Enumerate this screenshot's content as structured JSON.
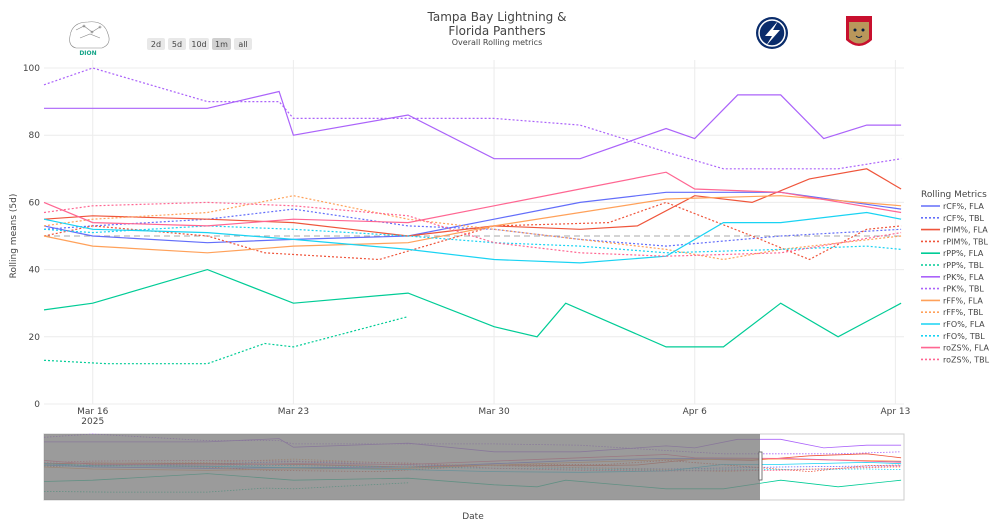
{
  "chart_data": {
    "type": "line",
    "title_lines": [
      "Tampa Bay Lightning &",
      "Florida Panthers"
    ],
    "subtitle": "Overall Rolling metrics",
    "xlabel": "Date",
    "ylabel": "Rolling means (5d)",
    "ylim": [
      0,
      100
    ],
    "y_ticks": [
      0,
      20,
      40,
      60,
      80,
      100
    ],
    "x_range": [
      -0.7,
      29.3
    ],
    "x_ticks": [
      {
        "x": 1,
        "label": "Mar 16",
        "sublabel": "2025"
      },
      {
        "x": 8,
        "label": "Mar 23",
        "sublabel": ""
      },
      {
        "x": 15,
        "label": "Mar 30",
        "sublabel": ""
      },
      {
        "x": 22,
        "label": "Apr 6",
        "sublabel": ""
      },
      {
        "x": 29,
        "label": "Apr 13",
        "sublabel": ""
      }
    ],
    "x_start_date": "2025-03-15",
    "reference_line": 50,
    "legend_title": "Rolling Metrics",
    "range_buttons": [
      "2d",
      "5d",
      "10d",
      "1m",
      "all"
    ],
    "active_button": "1m",
    "logo_text": "DION",
    "team_logos": [
      "Tampa Bay Lightning",
      "Florida Panthers"
    ],
    "series": [
      {
        "name": "rCF%, FLA",
        "color": "#636efa",
        "dash": false,
        "x": [
          -0.7,
          1,
          5,
          8,
          12,
          15,
          18,
          21,
          25,
          29.2
        ],
        "values": [
          53,
          50,
          48,
          49,
          50,
          55,
          60,
          63,
          63,
          58
        ]
      },
      {
        "name": "rCF%, TBL",
        "color": "#636efa",
        "dash": true,
        "x": [
          -0.7,
          1,
          5,
          8,
          12,
          15,
          18,
          21,
          25,
          29.2
        ],
        "values": [
          52,
          53,
          55,
          58,
          53,
          52,
          49,
          47,
          50,
          52
        ]
      },
      {
        "name": "rPIM%, FLA",
        "color": "#EF553B",
        "dash": false,
        "x": [
          -0.7,
          1,
          5,
          8,
          12,
          15,
          18,
          20,
          22,
          24,
          26,
          28,
          29.2
        ],
        "values": [
          55,
          56,
          55,
          54,
          50,
          53,
          52,
          53,
          62,
          60,
          67,
          70,
          64
        ]
      },
      {
        "name": "rPIM%, TBL",
        "color": "#EF553B",
        "dash": true,
        "x": [
          -0.7,
          1,
          5,
          7,
          11,
          15,
          19,
          21,
          24,
          26,
          28,
          29.2
        ],
        "values": [
          50,
          53,
          50,
          45,
          43,
          53,
          54,
          60,
          50,
          43,
          52,
          53
        ]
      },
      {
        "name": "rPP%, FLA",
        "color": "#00cc96",
        "dash": false,
        "x": [
          -0.7,
          1,
          5,
          8,
          12,
          15,
          16.5,
          17.5,
          21,
          23,
          25,
          27,
          29.2
        ],
        "values": [
          28,
          30,
          40,
          30,
          33,
          23,
          20,
          30,
          17,
          17,
          30,
          20,
          30
        ]
      },
      {
        "name": "rPP%, TBL",
        "color": "#00cc96",
        "dash": true,
        "x": [
          -0.7,
          1.5,
          5,
          7,
          8,
          12
        ],
        "values": [
          13,
          12,
          12,
          18,
          17,
          26
        ]
      },
      {
        "name": "rPK%, FLA",
        "color": "#ab63fa",
        "dash": false,
        "x": [
          -0.7,
          1,
          5,
          7.5,
          8,
          12,
          15,
          18,
          21,
          22,
          23.5,
          25,
          26.5,
          28,
          29.2
        ],
        "values": [
          88,
          88,
          88,
          93,
          80,
          86,
          73,
          73,
          82,
          79,
          92,
          92,
          79,
          83,
          83
        ]
      },
      {
        "name": "rPK%, TBL",
        "color": "#ab63fa",
        "dash": true,
        "x": [
          -0.7,
          1,
          5,
          7.5,
          8,
          12,
          15,
          18,
          21,
          23,
          27,
          29.2
        ],
        "values": [
          95,
          100,
          90,
          90,
          85,
          85,
          85,
          83,
          75,
          70,
          70,
          73
        ]
      },
      {
        "name": "rFF%, FLA",
        "color": "#FFA15A",
        "dash": false,
        "x": [
          -0.7,
          1,
          5,
          8,
          12,
          15,
          18,
          21,
          25,
          29.2
        ],
        "values": [
          50,
          47,
          45,
          47,
          48,
          53,
          57,
          61,
          62,
          59
        ]
      },
      {
        "name": "rFF%, TBL",
        "color": "#FFA15A",
        "dash": true,
        "x": [
          -0.7,
          1,
          5,
          8,
          12,
          15,
          18,
          21,
          23,
          25,
          29.2
        ],
        "values": [
          53,
          55,
          57,
          62,
          55,
          52,
          49,
          46,
          43,
          46,
          50
        ]
      },
      {
        "name": "rFO%, FLA",
        "color": "#19d3f3",
        "dash": false,
        "x": [
          -0.7,
          1,
          5,
          8,
          12,
          15,
          18,
          21,
          23,
          25,
          28,
          29.2
        ],
        "values": [
          55,
          52,
          51,
          49,
          46,
          43,
          42,
          44,
          54,
          54,
          57,
          55
        ]
      },
      {
        "name": "rFO%, TBL",
        "color": "#19d3f3",
        "dash": true,
        "x": [
          -0.7,
          1,
          5,
          8,
          12,
          15,
          18,
          21,
          25,
          28,
          29.2
        ],
        "values": [
          52,
          51,
          53,
          52,
          50,
          48,
          47,
          45,
          46,
          47,
          46
        ]
      },
      {
        "name": "roZS%, FLA",
        "color": "#FF6692",
        "dash": false,
        "x": [
          -0.7,
          1,
          5,
          8,
          12,
          15,
          18,
          21,
          22,
          25,
          29.2
        ],
        "values": [
          60,
          54,
          53,
          55,
          54,
          59,
          64,
          69,
          64,
          63,
          57
        ]
      },
      {
        "name": "roZS%, TBL",
        "color": "#FF6692",
        "dash": true,
        "x": [
          -0.7,
          1,
          5,
          8,
          12,
          15,
          18,
          21,
          25,
          29.2
        ],
        "values": [
          57,
          59,
          60,
          59,
          56,
          48,
          45,
          44,
          45,
          51
        ]
      }
    ]
  }
}
